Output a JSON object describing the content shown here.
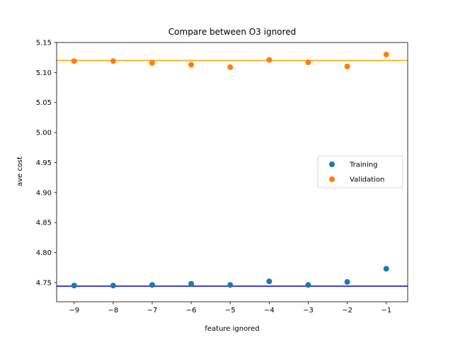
{
  "chart_data": {
    "type": "scatter",
    "title": "Compare between O3 ignored",
    "xlabel": "feature ignored",
    "ylabel": "ave cost",
    "xlim": [
      -9.45,
      -0.45
    ],
    "ylim": [
      4.718,
      5.15
    ],
    "x_ticks": [
      -9,
      -8,
      -7,
      -6,
      -5,
      -4,
      -3,
      -2,
      -1
    ],
    "x_tick_labels": [
      "−9",
      "−8",
      "−7",
      "−6",
      "−5",
      "−4",
      "−3",
      "−2",
      "−1"
    ],
    "y_ticks": [
      4.75,
      4.8,
      4.85,
      4.9,
      4.95,
      5.0,
      5.05,
      5.1,
      5.15
    ],
    "y_tick_labels": [
      "4.75",
      "4.80",
      "4.85",
      "4.90",
      "4.95",
      "5.00",
      "5.05",
      "5.10",
      "5.15"
    ],
    "grid": false,
    "legend_position": "center-right",
    "series": [
      {
        "name": "Training",
        "color": "#1f77b4",
        "x": [
          -9,
          -8,
          -7,
          -6,
          -5,
          -4,
          -3,
          -2,
          -1
        ],
        "y": [
          4.745,
          4.745,
          4.746,
          4.748,
          4.746,
          4.752,
          4.746,
          4.751,
          4.773
        ]
      },
      {
        "name": "Validation",
        "color": "#ff7f0e",
        "x": [
          -9,
          -8,
          -7,
          -6,
          -5,
          -4,
          -3,
          -2,
          -1
        ],
        "y": [
          5.119,
          5.119,
          5.116,
          5.113,
          5.109,
          5.121,
          5.117,
          5.11,
          5.13
        ]
      }
    ],
    "reference_lines": [
      {
        "y": 4.744,
        "color": "#0000cc"
      },
      {
        "y": 5.12,
        "color": "#ffa500"
      }
    ]
  }
}
